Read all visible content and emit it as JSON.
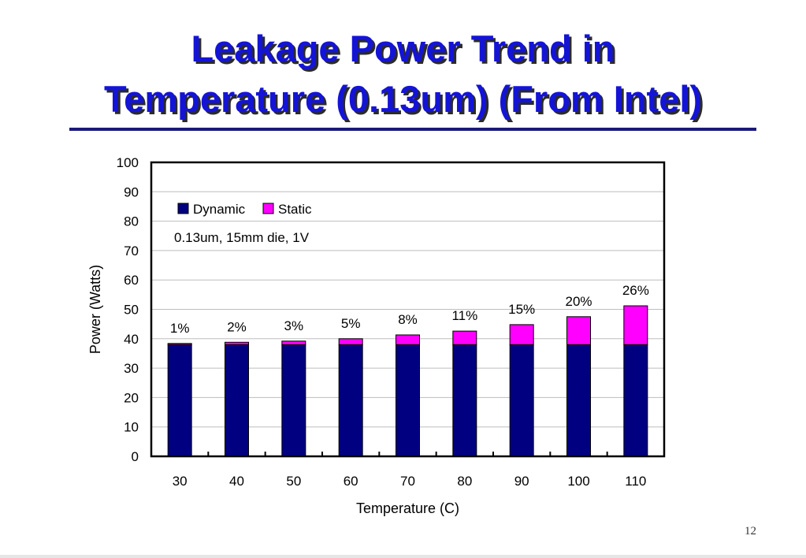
{
  "slide": {
    "title_line_1": "Leakage Power Trend in",
    "title_line_2": "Temperature (0.13um) (From Intel)",
    "page_number": "12"
  },
  "colors": {
    "title": "#1414d6",
    "dynamic": "#000080",
    "static": "#ff00ff"
  },
  "chart_data": {
    "type": "bar",
    "stacked": true,
    "categories": [
      "30",
      "40",
      "50",
      "60",
      "70",
      "80",
      "90",
      "100",
      "110"
    ],
    "series": [
      {
        "name": "Dynamic",
        "color": "#000080",
        "values": [
          38,
          38,
          38,
          38,
          38,
          38,
          38,
          38,
          38
        ]
      },
      {
        "name": "Static",
        "color": "#ff00ff",
        "values": [
          0.4,
          0.8,
          1.2,
          2.0,
          3.3,
          4.6,
          6.8,
          9.5,
          13.2
        ]
      }
    ],
    "data_labels": [
      "1%",
      "2%",
      "3%",
      "5%",
      "8%",
      "11%",
      "15%",
      "20%",
      "26%"
    ],
    "annotation": "0.13um, 15mm die, 1V",
    "xlabel": "Temperature (C)",
    "ylabel": "Power (Watts)",
    "ylim": [
      0,
      100
    ],
    "yticks": [
      0,
      10,
      20,
      30,
      40,
      50,
      60,
      70,
      80,
      90,
      100
    ],
    "grid": true,
    "legend_position": "top-left"
  }
}
